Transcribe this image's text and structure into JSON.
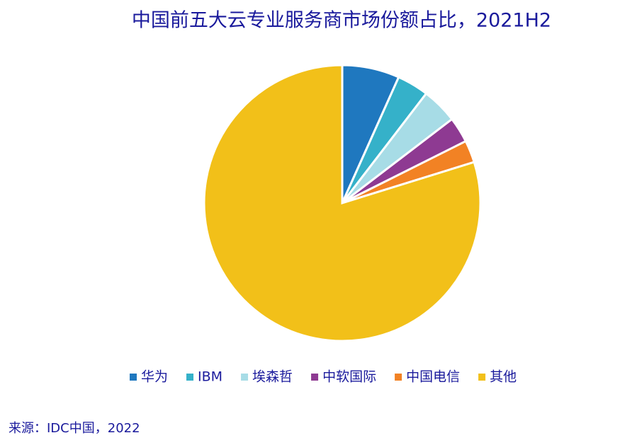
{
  "chart_data": {
    "type": "pie",
    "title": "中国前五大云专业服务商市场份额占比，2021H2",
    "categories": [
      "华为",
      "IBM",
      "埃森哲",
      "中软国际",
      "中国电信",
      "其他"
    ],
    "values": [
      6.7,
      3.7,
      4.2,
      3.0,
      2.6,
      79.8
    ],
    "colors": [
      "#1f78bf",
      "#35b1c9",
      "#a7dce6",
      "#8e3a92",
      "#f28224",
      "#f2c019"
    ],
    "legend": "bottom",
    "source": "来源：IDC中国，2022"
  }
}
